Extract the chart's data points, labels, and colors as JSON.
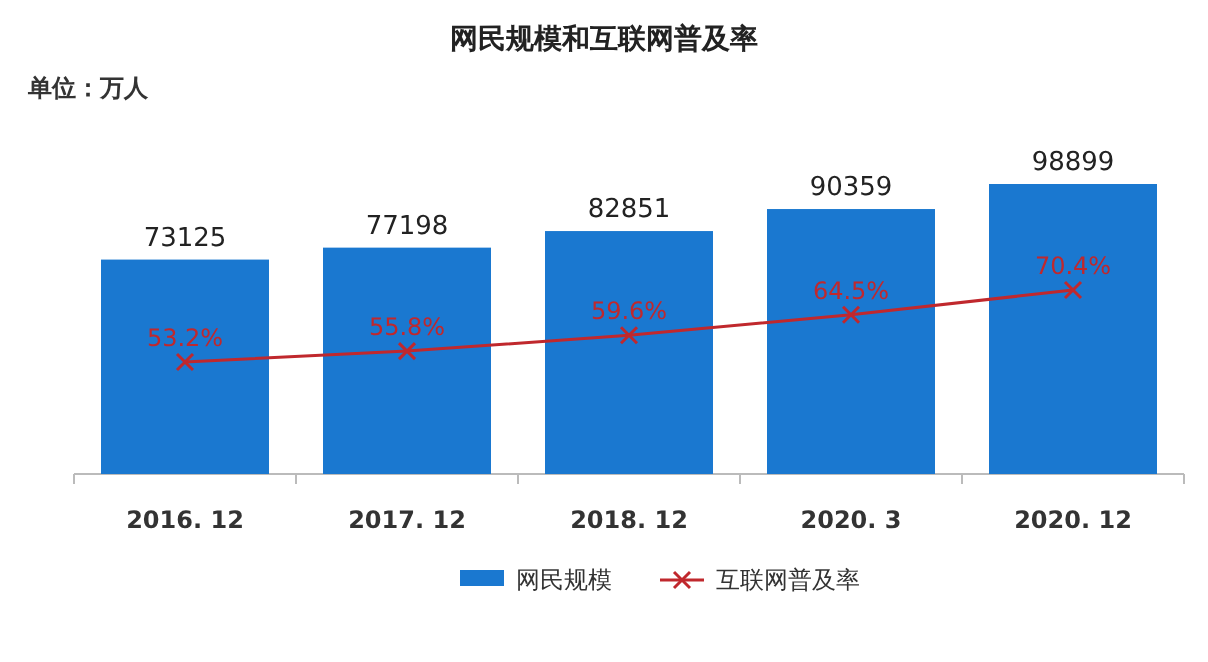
{
  "chart_data": {
    "type": "bar",
    "title": "网民规模和互联网普及率",
    "annotations": [
      "单位：万人"
    ],
    "categories": [
      "2016. 12",
      "2017. 12",
      "2018. 12",
      "2020. 3",
      "2020. 12"
    ],
    "series": [
      {
        "name": "网民规模",
        "color": "#1a78d0",
        "values": [
          73125,
          77198,
          82851,
          90359,
          98899
        ],
        "value_labels": [
          "73125",
          "77198",
          "82851",
          "90359",
          "98899"
        ]
      },
      {
        "name": "互联网普及率",
        "type": "line",
        "axis": "y2",
        "color": "#c0282d",
        "marker": "cross",
        "values": [
          53.2,
          55.8,
          59.6,
          64.5,
          70.4
        ],
        "value_labels": [
          "53.2%",
          "55.8%",
          "59.6%",
          "64.5%",
          "70.4%"
        ]
      }
    ],
    "legend": "bottom"
  }
}
